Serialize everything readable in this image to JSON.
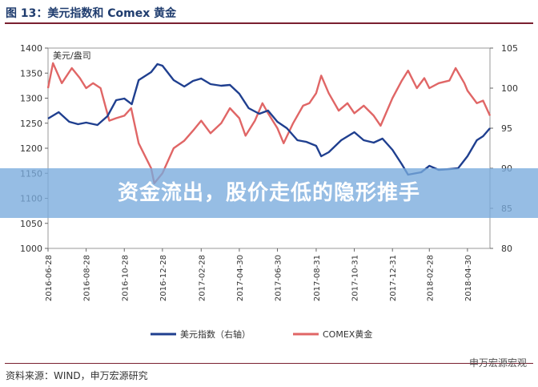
{
  "figure": {
    "title": "图 13：美元指数和 Comex 黄金",
    "banner": "资金流出，股价走低的隐形推手",
    "source": "资料来源：WIND，申万宏源研究",
    "watermark": "申万宏源宏观"
  },
  "colors": {
    "dxy": "#1f3f8f",
    "gold": "#e06666",
    "title": "#1f3c6e",
    "rule": "#7a2030",
    "banner": "#78aadc"
  },
  "chart_data": {
    "type": "line",
    "title": "",
    "annotation": "美元/盎司",
    "x_ticks": [
      "2016-06-28",
      "2016-08-28",
      "2016-10-28",
      "2016-12-28",
      "2017-02-28",
      "2017-04-30",
      "2017-06-30",
      "2017-08-31",
      "2017-10-31",
      "2017-12-31",
      "2018-02-28",
      "2018-04-30"
    ],
    "y_left": {
      "ylim": [
        1000,
        1400
      ],
      "ticks": [
        1000,
        1050,
        1100,
        1150,
        1200,
        1250,
        1300,
        1350,
        1400
      ]
    },
    "y_right": {
      "ylim": [
        80,
        105
      ],
      "ticks": [
        80,
        85,
        90,
        95,
        100,
        105
      ]
    },
    "series": [
      {
        "name": "美元指数（右轴）",
        "axis": "right",
        "x": [
          "2016-06-28",
          "2016-07-15",
          "2016-08-01",
          "2016-08-15",
          "2016-08-28",
          "2016-09-15",
          "2016-10-01",
          "2016-10-15",
          "2016-10-28",
          "2016-11-09",
          "2016-11-20",
          "2016-12-10",
          "2016-12-20",
          "2016-12-28",
          "2017-01-15",
          "2017-02-01",
          "2017-02-15",
          "2017-02-28",
          "2017-03-15",
          "2017-04-01",
          "2017-04-15",
          "2017-04-30",
          "2017-05-15",
          "2017-06-01",
          "2017-06-15",
          "2017-06-30",
          "2017-07-15",
          "2017-08-01",
          "2017-08-15",
          "2017-08-31",
          "2017-09-08",
          "2017-09-20",
          "2017-10-10",
          "2017-10-31",
          "2017-11-15",
          "2017-12-01",
          "2017-12-15",
          "2017-12-31",
          "2018-01-15",
          "2018-01-25",
          "2018-02-15",
          "2018-02-28",
          "2018-03-15",
          "2018-04-01",
          "2018-04-15",
          "2018-04-30",
          "2018-05-15",
          "2018-05-25",
          "2018-06-05"
        ],
        "values": [
          96.2,
          97.0,
          95.8,
          95.5,
          95.7,
          95.4,
          96.5,
          98.5,
          98.7,
          98.0,
          101.0,
          102.0,
          103.0,
          102.8,
          101.0,
          100.2,
          100.9,
          101.2,
          100.5,
          100.3,
          100.4,
          99.3,
          97.5,
          96.8,
          97.2,
          95.8,
          95.0,
          93.5,
          93.3,
          92.8,
          91.5,
          92.0,
          93.5,
          94.5,
          93.5,
          93.2,
          93.7,
          92.3,
          90.5,
          89.2,
          89.5,
          90.3,
          89.8,
          89.9,
          90.0,
          91.5,
          93.5,
          94.0,
          95.0
        ]
      },
      {
        "name": "COMEX黄金",
        "axis": "left",
        "x": [
          "2016-06-28",
          "2016-07-06",
          "2016-07-20",
          "2016-08-05",
          "2016-08-18",
          "2016-08-28",
          "2016-09-08",
          "2016-09-20",
          "2016-10-04",
          "2016-10-15",
          "2016-10-28",
          "2016-11-08",
          "2016-11-20",
          "2016-12-10",
          "2016-12-15",
          "2016-12-28",
          "2017-01-15",
          "2017-02-01",
          "2017-02-15",
          "2017-02-28",
          "2017-03-15",
          "2017-04-01",
          "2017-04-15",
          "2017-04-30",
          "2017-05-10",
          "2017-05-25",
          "2017-06-06",
          "2017-06-15",
          "2017-06-30",
          "2017-07-10",
          "2017-07-25",
          "2017-08-10",
          "2017-08-20",
          "2017-08-31",
          "2017-09-08",
          "2017-09-20",
          "2017-10-06",
          "2017-10-20",
          "2017-10-31",
          "2017-11-15",
          "2017-12-01",
          "2017-12-12",
          "2017-12-31",
          "2018-01-15",
          "2018-01-25",
          "2018-02-08",
          "2018-02-20",
          "2018-02-28",
          "2018-03-15",
          "2018-04-01",
          "2018-04-11",
          "2018-04-25",
          "2018-04-30",
          "2018-05-15",
          "2018-05-25",
          "2018-06-05"
        ],
        "values": [
          1320,
          1370,
          1330,
          1360,
          1340,
          1320,
          1330,
          1320,
          1255,
          1260,
          1265,
          1280,
          1210,
          1160,
          1130,
          1150,
          1200,
          1215,
          1235,
          1255,
          1230,
          1250,
          1280,
          1260,
          1225,
          1255,
          1290,
          1270,
          1240,
          1210,
          1250,
          1285,
          1290,
          1310,
          1345,
          1310,
          1275,
          1290,
          1270,
          1285,
          1265,
          1245,
          1300,
          1335,
          1355,
          1320,
          1340,
          1320,
          1330,
          1335,
          1360,
          1330,
          1315,
          1290,
          1295,
          1265
        ]
      }
    ],
    "legend": {
      "position": "bottom",
      "entries": [
        "美元指数（右轴）",
        "COMEX黄金"
      ]
    }
  }
}
